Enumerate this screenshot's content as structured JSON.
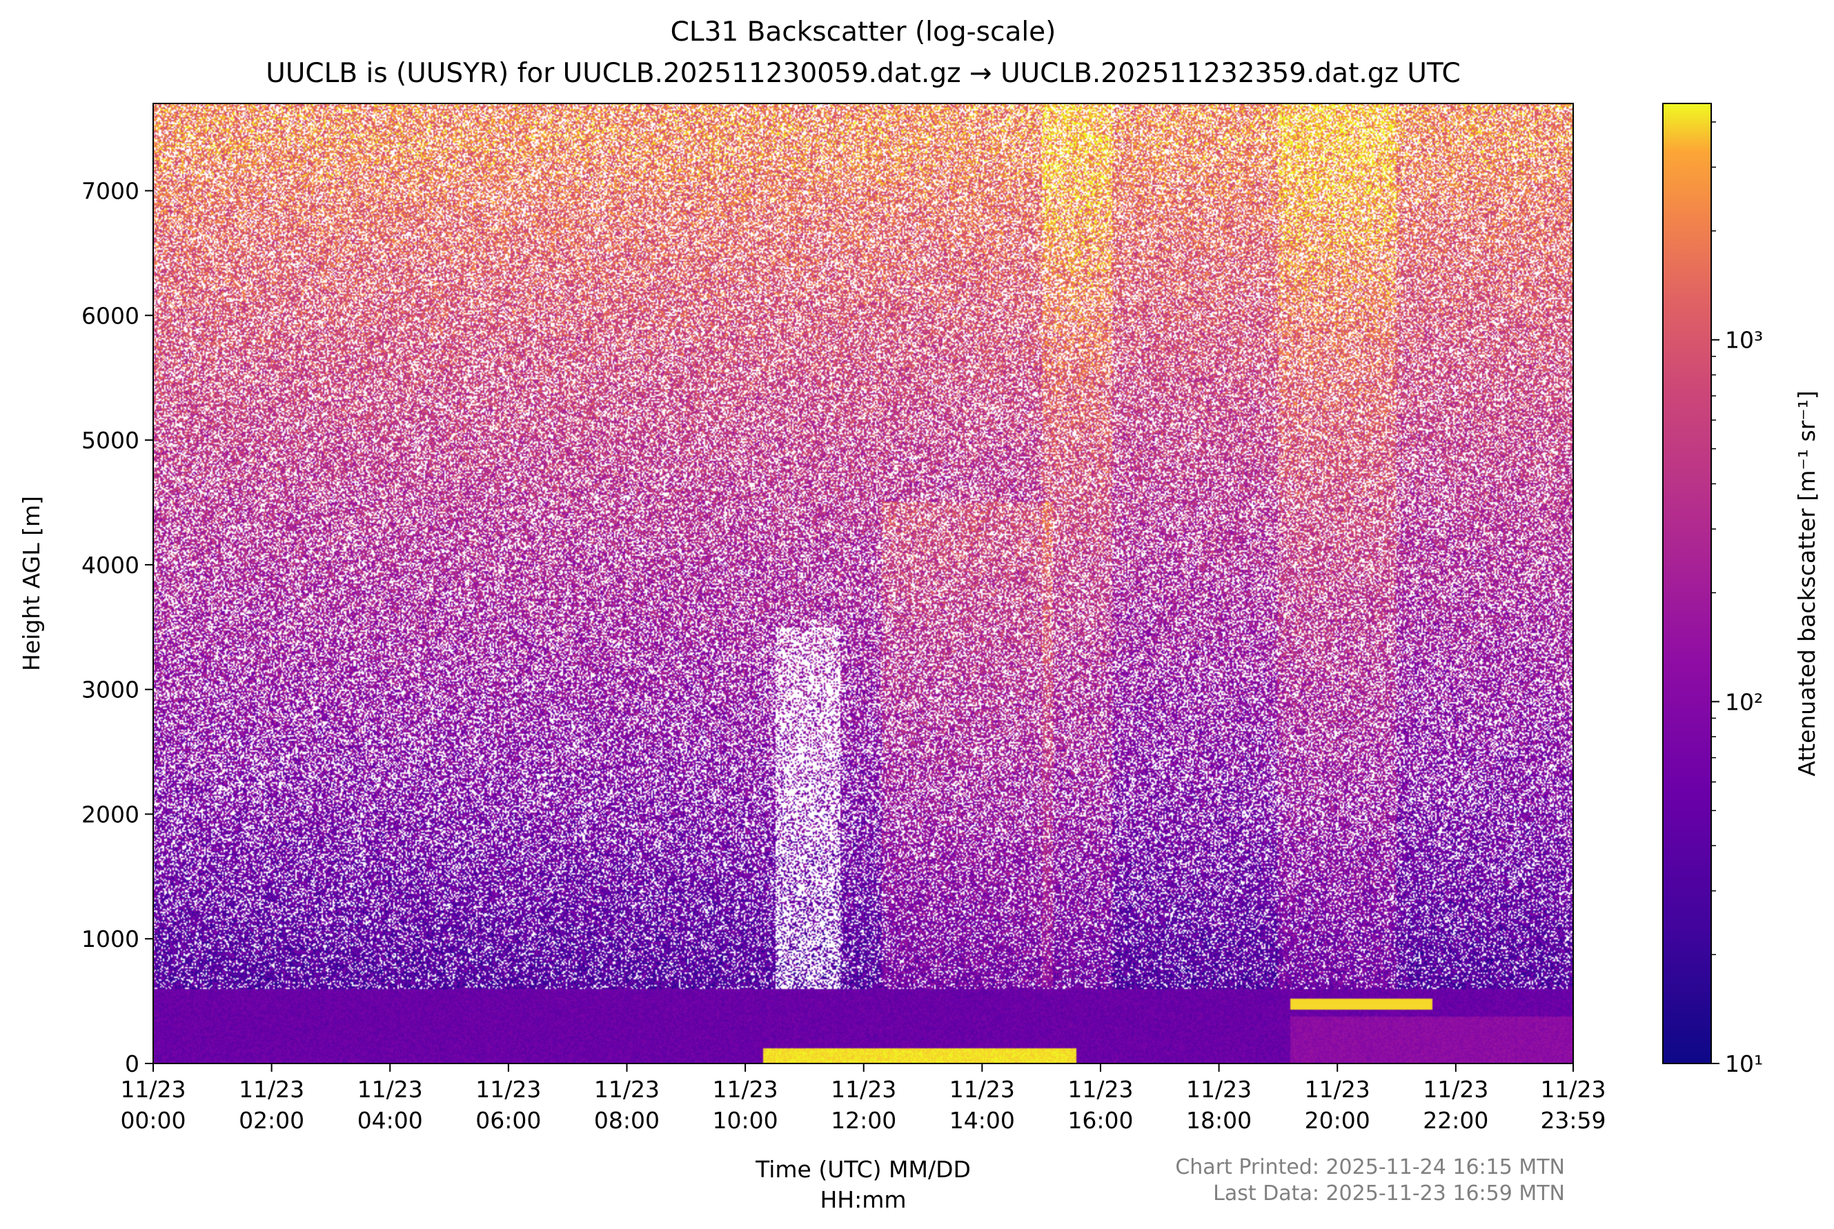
{
  "chart_data": {
    "type": "heatmap",
    "title": "CL31 Backscatter (log-scale)",
    "subtitle": "UUCLB is (UUSYR) for UUCLB.202511230059.dat.gz → UUCLB.202511232359.dat.gz UTC",
    "xlabel_line1": "Time (UTC) MM/DD",
    "xlabel_line2": "HH:mm",
    "ylabel": "Height AGL [m]",
    "x_range_hours": [
      0,
      23.983
    ],
    "x_tick_hours": [
      0,
      2,
      4,
      6,
      8,
      10,
      12,
      14,
      16,
      18,
      20,
      22,
      23.983
    ],
    "x_ticks_line1": [
      "11/23",
      "11/23",
      "11/23",
      "11/23",
      "11/23",
      "11/23",
      "11/23",
      "11/23",
      "11/23",
      "11/23",
      "11/23",
      "11/23",
      "11/23"
    ],
    "x_ticks_line2": [
      "00:00",
      "02:00",
      "04:00",
      "06:00",
      "08:00",
      "10:00",
      "12:00",
      "14:00",
      "16:00",
      "18:00",
      "20:00",
      "22:00",
      "23:59"
    ],
    "y_range": [
      0,
      7700
    ],
    "y_ticks": [
      0,
      1000,
      2000,
      3000,
      4000,
      5000,
      6000,
      7000
    ],
    "y_tick_labels": [
      "0",
      "1000",
      "2000",
      "3000",
      "4000",
      "5000",
      "6000",
      "7000"
    ],
    "colorbar": {
      "label": "Attenuated backscatter [m⁻¹ sr⁻¹]",
      "scale": "log",
      "range": [
        10,
        4500
      ],
      "colormap": "plasma",
      "ticks": [
        10,
        100,
        1000
      ],
      "tick_labels": [
        "10¹",
        "10²",
        "10³"
      ],
      "minor_ticks": [
        20,
        30,
        40,
        50,
        60,
        70,
        80,
        90,
        200,
        300,
        400,
        500,
        600,
        700,
        800,
        900,
        2000,
        3000,
        4000
      ]
    },
    "features": [
      {
        "label": "boundary layer top",
        "height_m": 600
      },
      {
        "label": "low cloud",
        "start_hour": 10.3,
        "end_hour": 15.6,
        "height_m": 80
      },
      {
        "label": "cloud layer",
        "start_hour": 19.2,
        "end_hour": 21.6,
        "height_m": 480
      }
    ]
  },
  "footer": {
    "printed": "Chart Printed: 2025-11-24 16:15 MTN",
    "last_data": "Last Data: 2025-11-23 16:59 MTN"
  }
}
